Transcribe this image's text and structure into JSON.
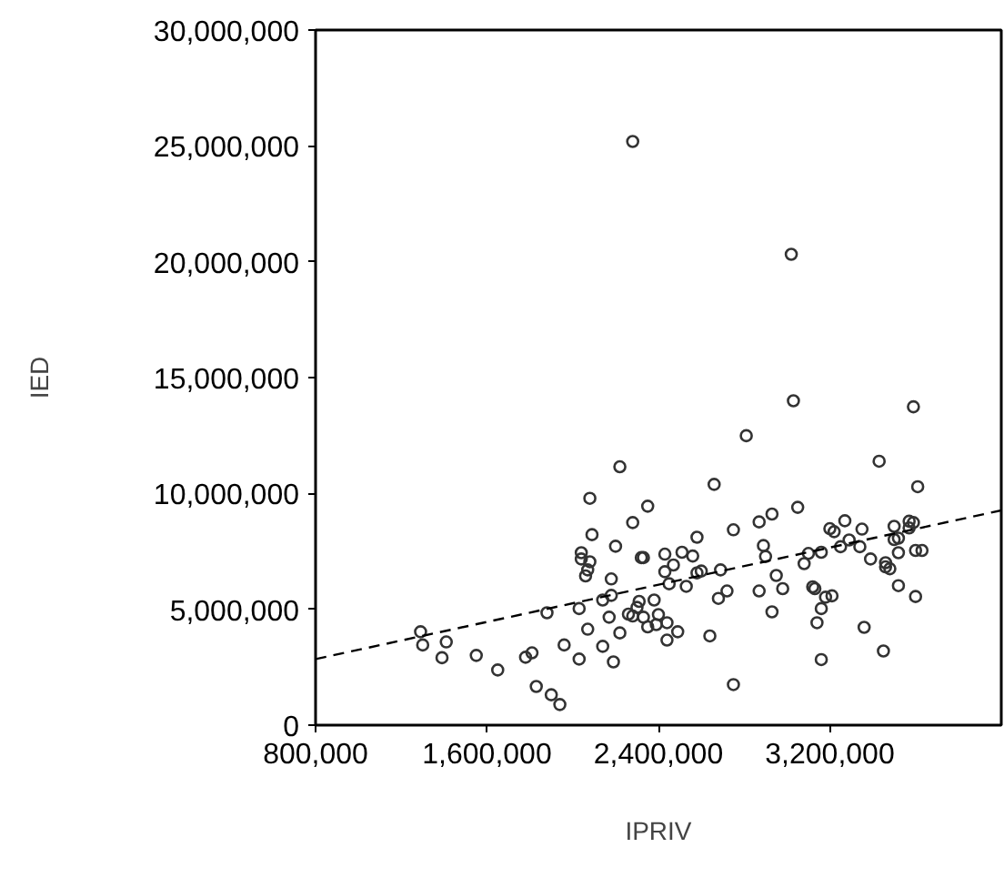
{
  "chart_data": {
    "type": "scatter",
    "xlabel": "IPRIV",
    "ylabel": "IED",
    "xlim": [
      800000,
      4000000
    ],
    "ylim": [
      0,
      30000000
    ],
    "xticks": [
      {
        "value": 800000,
        "label": "800,000"
      },
      {
        "value": 1600000,
        "label": "1,600,000"
      },
      {
        "value": 2400000,
        "label": "2,400,000"
      },
      {
        "value": 3200000,
        "label": "3,200,000"
      }
    ],
    "yticks": [
      {
        "value": 0,
        "label": "0"
      },
      {
        "value": 5000000,
        "label": "5,000,000"
      },
      {
        "value": 10000000,
        "label": "10,000,000"
      },
      {
        "value": 15000000,
        "label": "15,000,000"
      },
      {
        "value": 20000000,
        "label": "20,000,000"
      },
      {
        "value": 25000000,
        "label": "25,000,000"
      },
      {
        "value": 30000000,
        "label": "30,000,000"
      }
    ],
    "grid": false,
    "marker": "circle",
    "series": [
      {
        "color": "#333333",
        "x": [
          1290000,
          1300000,
          1410000,
          1390000,
          1550000,
          1650000,
          1780000,
          1810000,
          1830000,
          1900000,
          1940000,
          1880000,
          1960000,
          2030000,
          2030000,
          2070000,
          2140000,
          2190000,
          2220000,
          2170000,
          2140000,
          2180000,
          2180000,
          2060000,
          2070000,
          2040000,
          2040000,
          2080000,
          2090000,
          2080000,
          2220000,
          2350000,
          2280000,
          2200000,
          2320000,
          2330000,
          2430000,
          2470000,
          2430000,
          2450000,
          2310000,
          2380000,
          2260000,
          2300000,
          2330000,
          2350000,
          2400000,
          2390000,
          2440000,
          2440000,
          2280000,
          3030000,
          3590000,
          2810000,
          3430000,
          2660000,
          3610000,
          3050000,
          2930000,
          2870000,
          2750000,
          2580000,
          3270000,
          3200000,
          3220000,
          3350000,
          3570000,
          3590000,
          3500000,
          3570000,
          3500000,
          3520000,
          3290000,
          3250000,
          3340000,
          3520000,
          3600000,
          3630000,
          3390000,
          3460000,
          3460000,
          3480000,
          3160000,
          3100000,
          3080000,
          2890000,
          2900000,
          2950000,
          2980000,
          2870000,
          2930000,
          2720000,
          2680000,
          2690000,
          2600000,
          2580000,
          2530000,
          2560000,
          2510000,
          3120000,
          3130000,
          3210000,
          3180000,
          3160000,
          3140000,
          3360000,
          3520000,
          3600000,
          3450000,
          3160000,
          2750000,
          2640000,
          2490000,
          2280000,
          3020000
        ],
        "values": [
          4030000,
          3460000,
          3590000,
          2910000,
          3010000,
          2380000,
          2930000,
          3120000,
          1670000,
          1310000,
          890000,
          4850000,
          3460000,
          2850000,
          5030000,
          4140000,
          3400000,
          2730000,
          3980000,
          4660000,
          5400000,
          5600000,
          6310000,
          6440000,
          6700000,
          7440000,
          7170000,
          7050000,
          8220000,
          9790000,
          11150000,
          9450000,
          8740000,
          7720000,
          7230000,
          7230000,
          7380000,
          6910000,
          6620000,
          6100000,
          5340000,
          5400000,
          4790000,
          5080000,
          4660000,
          4240000,
          4770000,
          4340000,
          4420000,
          3670000,
          4710000,
          14000000,
          13740000,
          12490000,
          11390000,
          10390000,
          10290000,
          9400000,
          9110000,
          8770000,
          8430000,
          8110000,
          8820000,
          8480000,
          8350000,
          8460000,
          8800000,
          8740000,
          8580000,
          8510000,
          8010000,
          8070000,
          7990000,
          7700000,
          7700000,
          7440000,
          7540000,
          7540000,
          7170000,
          7010000,
          6830000,
          6750000,
          7460000,
          7410000,
          6970000,
          7750000,
          7280000,
          6460000,
          5890000,
          5790000,
          4890000,
          5790000,
          5470000,
          6700000,
          6650000,
          6570000,
          5990000,
          7300000,
          7460000,
          5970000,
          5890000,
          5580000,
          5520000,
          5030000,
          4420000,
          4220000,
          6020000,
          5550000,
          3200000,
          2830000,
          1750000,
          3850000,
          4030000,
          25190000,
          20320000
        ]
      },
      {
        "type": "line",
        "color": "#000000",
        "marker": "none",
        "line_style": "dashed",
        "x": [
          800000,
          4000000
        ],
        "values": [
          2850000,
          9270000
        ]
      }
    ]
  }
}
